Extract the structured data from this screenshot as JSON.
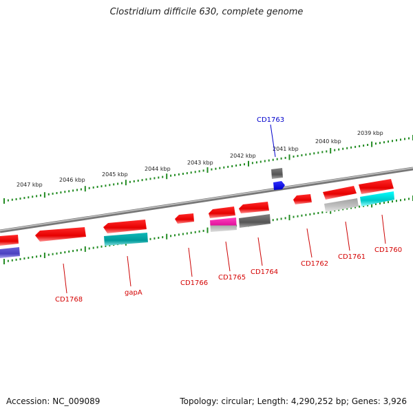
{
  "title": "Clostridium difficile 630, complete genome",
  "footer": {
    "accession": "Accession: NC_009089",
    "topology": "Topology: circular; Length: 4,290,252 bp; Genes: 3,926"
  },
  "colors": {
    "cds_forward": "#ff0000",
    "cds_reverse_label": "#d40000",
    "highlight_label": "#0000cc",
    "backbone": "#8a8a8a",
    "ticks": "#228b22"
  },
  "kbp_labels": [
    {
      "id": "2047",
      "text": "2047 kbp"
    },
    {
      "id": "2046",
      "text": "2046 kbp"
    },
    {
      "id": "2045",
      "text": "2045 kbp"
    },
    {
      "id": "2044",
      "text": "2044 kbp"
    },
    {
      "id": "2043",
      "text": "2043 kbp"
    },
    {
      "id": "2042",
      "text": "2042 kbp"
    },
    {
      "id": "2041",
      "text": "2041 kbp"
    },
    {
      "id": "2040",
      "text": "2040 kbp"
    },
    {
      "id": "2039",
      "text": "2039 kbp"
    }
  ],
  "genes": [
    {
      "id": "CD1768",
      "label": "CD1768"
    },
    {
      "id": "gapA",
      "label": "gapA"
    },
    {
      "id": "CD1766",
      "label": "CD1766"
    },
    {
      "id": "CD1765",
      "label": "CD1765"
    },
    {
      "id": "CD1764",
      "label": "CD1764"
    },
    {
      "id": "CD1762",
      "label": "CD1762"
    },
    {
      "id": "CD1761",
      "label": "CD1761"
    },
    {
      "id": "CD1760",
      "label": "CD1760"
    },
    {
      "id": "CD1763",
      "label": "CD1763"
    }
  ]
}
